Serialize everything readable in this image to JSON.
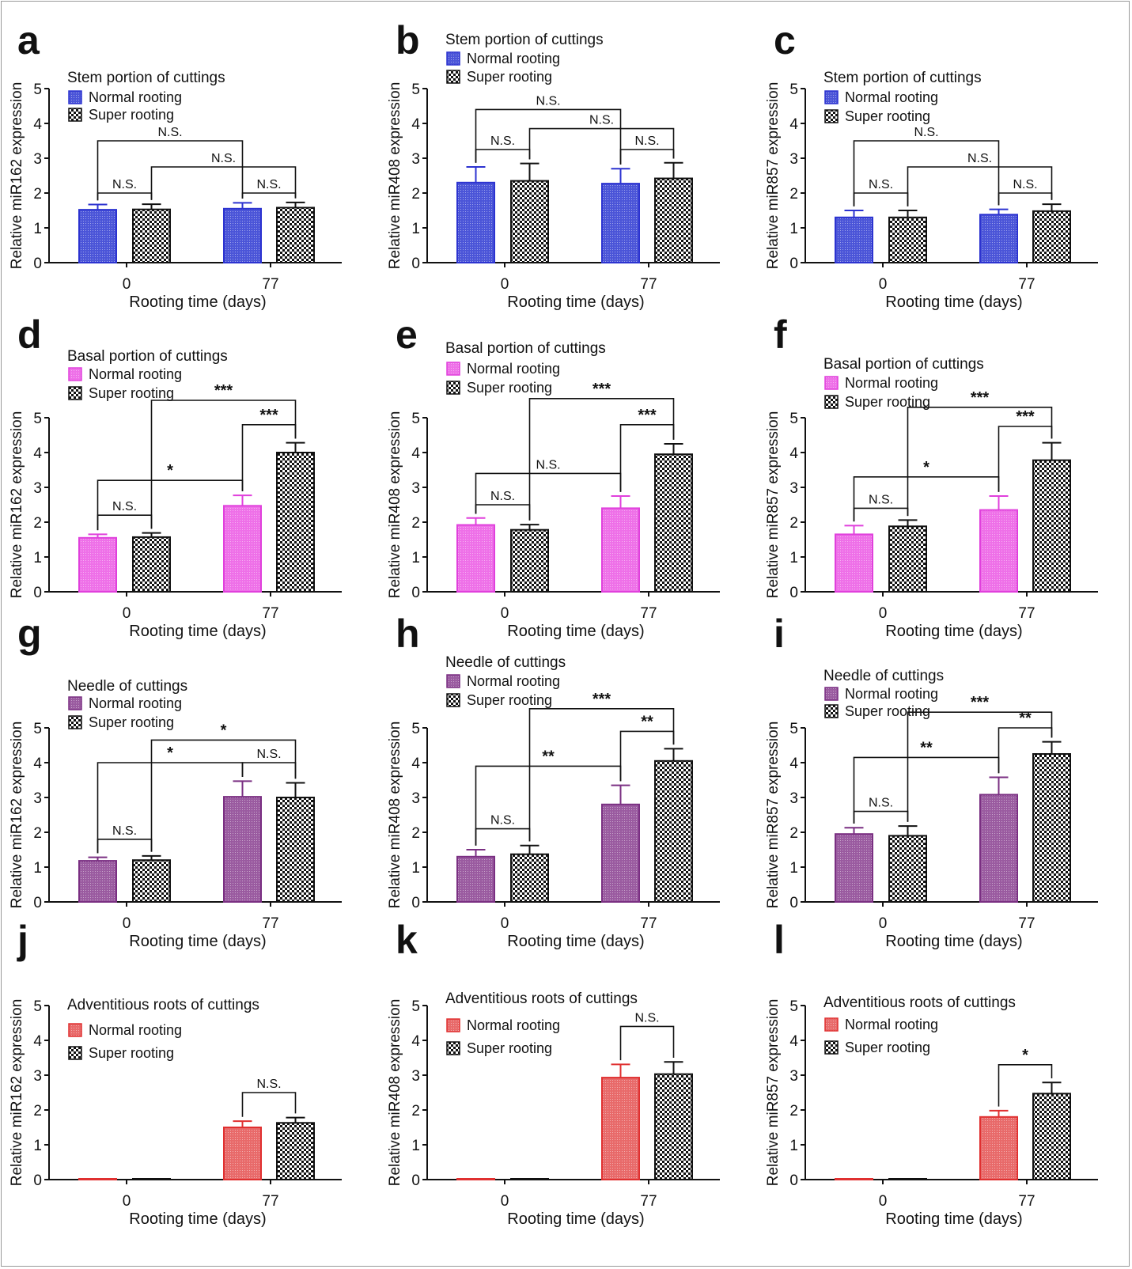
{
  "chart_data": {
    "type": "bar",
    "categories": [
      "0",
      "77"
    ],
    "xlabel": "Rooting time (days)",
    "ylim": [
      0,
      5
    ],
    "yticks": [
      0,
      1,
      2,
      3,
      4,
      5
    ],
    "legend": [
      "Normal rooting",
      "Super rooting"
    ],
    "legend_placement": "top-left",
    "grid": false,
    "error_bars": "SD (upper only)",
    "colors": {
      "stem": "#4b55d8",
      "basal": "#ee70e8",
      "needle": "#9a5ba0",
      "roots": "#e86a6a",
      "super": "#111111"
    },
    "panels": [
      {
        "letter": "a",
        "title": "Stem portion of cuttings",
        "tissue": "stem",
        "ylabel": "Relative miR162 expression",
        "normal": [
          1.52,
          1.55
        ],
        "normal_err": [
          0.15,
          0.17
        ],
        "super": [
          1.53,
          1.58
        ],
        "super_err": [
          0.15,
          0.15
        ],
        "comparisons": [
          {
            "pair": [
              "0 normal",
              "0 super"
            ],
            "label": "N.S."
          },
          {
            "pair": [
              "0 normal",
              "77 normal"
            ],
            "label": "N.S."
          },
          {
            "pair": [
              "0 super",
              "77 super"
            ],
            "label": "N.S."
          },
          {
            "pair": [
              "77 normal",
              "77 super"
            ],
            "label": "N.S."
          }
        ]
      },
      {
        "letter": "b",
        "title": "Stem portion of cuttings",
        "tissue": "stem",
        "ylabel": "Relative miR408 expression",
        "normal": [
          2.3,
          2.27
        ],
        "normal_err": [
          0.45,
          0.43
        ],
        "super": [
          2.35,
          2.42
        ],
        "super_err": [
          0.5,
          0.45
        ],
        "comparisons": [
          {
            "pair": [
              "0 normal",
              "0 super"
            ],
            "label": "N.S."
          },
          {
            "pair": [
              "0 normal",
              "77 normal"
            ],
            "label": "N.S."
          },
          {
            "pair": [
              "0 super",
              "77 super"
            ],
            "label": "N.S."
          },
          {
            "pair": [
              "77 normal",
              "77 super"
            ],
            "label": "N.S."
          }
        ]
      },
      {
        "letter": "c",
        "title": "Stem portion of cuttings",
        "tissue": "stem",
        "ylabel": "Relative miR857 expression",
        "normal": [
          1.3,
          1.38
        ],
        "normal_err": [
          0.2,
          0.15
        ],
        "super": [
          1.3,
          1.48
        ],
        "super_err": [
          0.2,
          0.2
        ],
        "comparisons": [
          {
            "pair": [
              "0 normal",
              "0 super"
            ],
            "label": "N.S."
          },
          {
            "pair": [
              "0 normal",
              "77 normal"
            ],
            "label": "N.S."
          },
          {
            "pair": [
              "0 super",
              "77 super"
            ],
            "label": "N.S."
          },
          {
            "pair": [
              "77 normal",
              "77 super"
            ],
            "label": "N.S."
          }
        ]
      },
      {
        "letter": "d",
        "title": "Basal portion of cuttings",
        "tissue": "basal",
        "ylabel": "Relative miR162 expression",
        "normal": [
          1.55,
          2.47
        ],
        "normal_err": [
          0.1,
          0.3
        ],
        "super": [
          1.57,
          4.0
        ],
        "super_err": [
          0.12,
          0.28
        ],
        "comparisons": [
          {
            "pair": [
              "0 normal",
              "0 super"
            ],
            "label": "N.S."
          },
          {
            "pair": [
              "0 normal",
              "77 normal"
            ],
            "label": "*"
          },
          {
            "pair": [
              "77 normal",
              "77 super"
            ],
            "label": "***"
          },
          {
            "pair": [
              "0 super",
              "77 super"
            ],
            "label": "***"
          }
        ]
      },
      {
        "letter": "e",
        "title": "Basal portion of cuttings",
        "tissue": "basal",
        "ylabel": "Relative miR408 expression",
        "normal": [
          1.92,
          2.4
        ],
        "normal_err": [
          0.2,
          0.35
        ],
        "super": [
          1.78,
          3.95
        ],
        "super_err": [
          0.15,
          0.3
        ],
        "comparisons": [
          {
            "pair": [
              "0 normal",
              "0 super"
            ],
            "label": "N.S."
          },
          {
            "pair": [
              "0 normal",
              "77 normal"
            ],
            "label": "N.S."
          },
          {
            "pair": [
              "77 normal",
              "77 super"
            ],
            "label": "***"
          },
          {
            "pair": [
              "0 super",
              "77 super"
            ],
            "label": "***"
          }
        ]
      },
      {
        "letter": "f",
        "title": "Basal portion of cuttings",
        "tissue": "basal",
        "ylabel": "Relative miR857 expression",
        "normal": [
          1.65,
          2.35
        ],
        "normal_err": [
          0.25,
          0.4
        ],
        "super": [
          1.88,
          3.78
        ],
        "super_err": [
          0.18,
          0.5
        ],
        "comparisons": [
          {
            "pair": [
              "0 normal",
              "0 super"
            ],
            "label": "N.S."
          },
          {
            "pair": [
              "0 normal",
              "77 normal"
            ],
            "label": "*"
          },
          {
            "pair": [
              "77 normal",
              "77 super"
            ],
            "label": "***"
          },
          {
            "pair": [
              "0 super",
              "77 super"
            ],
            "label": "***"
          }
        ]
      },
      {
        "letter": "g",
        "title": "Needle of cuttings",
        "tissue": "needle",
        "ylabel": "Relative miR162 expression",
        "normal": [
          1.18,
          3.02
        ],
        "normal_err": [
          0.1,
          0.45
        ],
        "super": [
          1.2,
          3.0
        ],
        "super_err": [
          0.12,
          0.42
        ],
        "comparisons": [
          {
            "pair": [
              "0 normal",
              "0 super"
            ],
            "label": "N.S."
          },
          {
            "pair": [
              "0 normal",
              "77 normal"
            ],
            "label": "*"
          },
          {
            "pair": [
              "77 normal",
              "77 super"
            ],
            "label": "N.S."
          },
          {
            "pair": [
              "0 super",
              "77 super"
            ],
            "label": "*"
          }
        ]
      },
      {
        "letter": "h",
        "title": "Needle of cuttings",
        "tissue": "needle",
        "ylabel": "Relative miR408 expression",
        "normal": [
          1.3,
          2.8
        ],
        "normal_err": [
          0.2,
          0.55
        ],
        "super": [
          1.37,
          4.05
        ],
        "super_err": [
          0.25,
          0.35
        ],
        "comparisons": [
          {
            "pair": [
              "0 normal",
              "0 super"
            ],
            "label": "N.S."
          },
          {
            "pair": [
              "0 normal",
              "77 normal"
            ],
            "label": "**"
          },
          {
            "pair": [
              "77 normal",
              "77 super"
            ],
            "label": "**"
          },
          {
            "pair": [
              "0 super",
              "77 super"
            ],
            "label": "***"
          }
        ]
      },
      {
        "letter": "i",
        "title": "Needle of cuttings",
        "tissue": "needle",
        "ylabel": "Relative miR857 expression",
        "normal": [
          1.95,
          3.08
        ],
        "normal_err": [
          0.18,
          0.5
        ],
        "super": [
          1.9,
          4.25
        ],
        "super_err": [
          0.28,
          0.35
        ],
        "comparisons": [
          {
            "pair": [
              "0 normal",
              "0 super"
            ],
            "label": "N.S."
          },
          {
            "pair": [
              "0 normal",
              "77 normal"
            ],
            "label": "**"
          },
          {
            "pair": [
              "77 normal",
              "77 super"
            ],
            "label": "**"
          },
          {
            "pair": [
              "0 super",
              "77 super"
            ],
            "label": "***"
          }
        ]
      },
      {
        "letter": "j",
        "title": "Adventitious roots of cuttings",
        "tissue": "roots",
        "ylabel": "Relative miR162 expression",
        "normal": [
          0,
          1.5
        ],
        "normal_err": [
          0,
          0.18
        ],
        "super": [
          0,
          1.63
        ],
        "super_err": [
          0,
          0.15
        ],
        "comparisons": [
          {
            "pair": [
              "77 normal",
              "77 super"
            ],
            "label": "N.S."
          }
        ]
      },
      {
        "letter": "k",
        "title": "Adventitious roots of cuttings",
        "tissue": "roots",
        "ylabel": "Relative miR408 expression",
        "normal": [
          0,
          2.93
        ],
        "normal_err": [
          0,
          0.38
        ],
        "super": [
          0,
          3.03
        ],
        "super_err": [
          0,
          0.35
        ],
        "comparisons": [
          {
            "pair": [
              "77 normal",
              "77 super"
            ],
            "label": "N.S."
          }
        ]
      },
      {
        "letter": "l",
        "title": "Adventitious roots of cuttings",
        "tissue": "roots",
        "ylabel": "Relative miR857 expression",
        "normal": [
          0,
          1.8
        ],
        "normal_err": [
          0,
          0.18
        ],
        "super": [
          0,
          2.47
        ],
        "super_err": [
          0,
          0.32
        ],
        "comparisons": [
          {
            "pair": [
              "77 normal",
              "77 super"
            ],
            "label": "*"
          }
        ]
      }
    ]
  }
}
